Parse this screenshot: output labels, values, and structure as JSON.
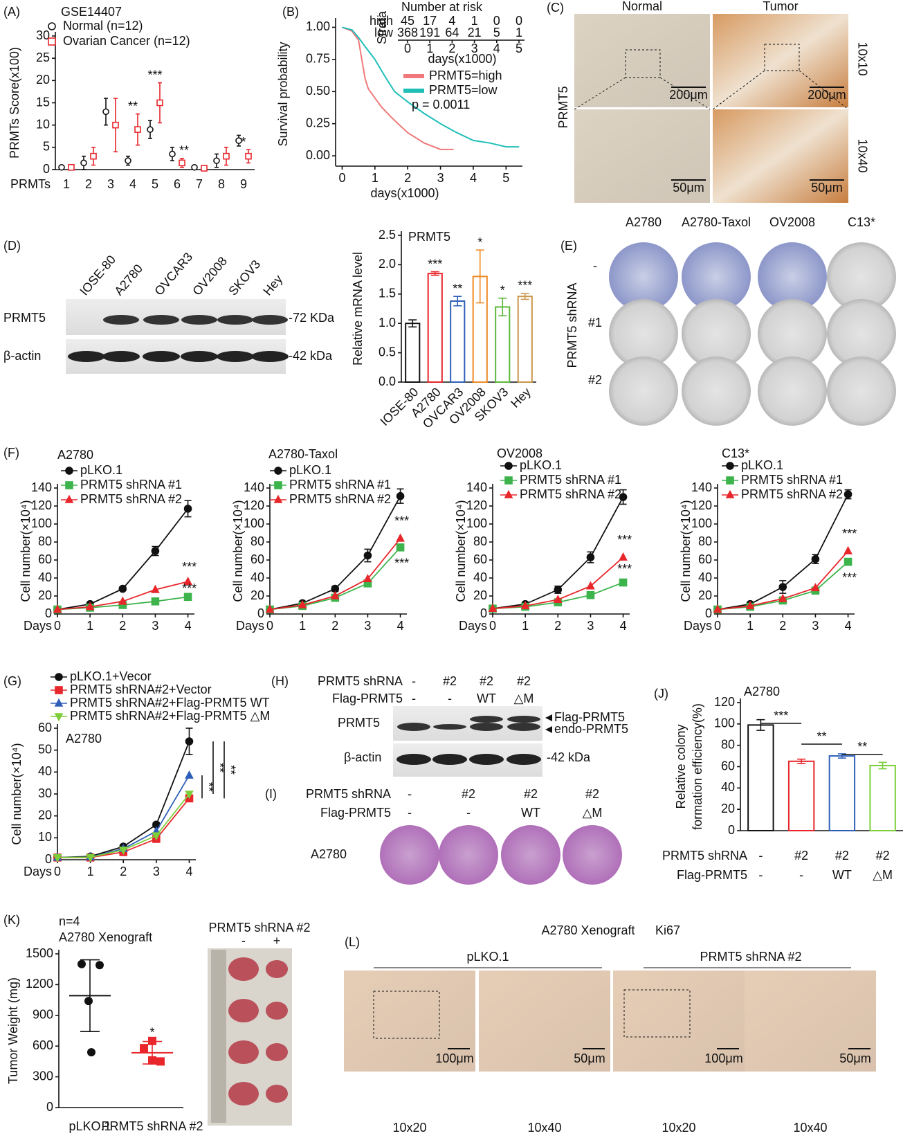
{
  "chart_data": [
    {
      "type": "dot",
      "panel": "(A)",
      "title": "GSE14407",
      "categories": [
        "1",
        "2",
        "3",
        "4",
        "5",
        "6",
        "7",
        "8",
        "9"
      ],
      "category_colors": [
        "#111111",
        "#111111",
        "#111111",
        "#111111",
        "#e8262b",
        "#111111",
        "#111111",
        "#111111",
        "#111111"
      ],
      "xlabel": "PRMTs",
      "ylabel": "PRMTs Score(x100)",
      "ylim": [
        0,
        30
      ],
      "yticks": [
        0,
        5,
        10,
        15,
        20,
        25,
        30
      ],
      "series": [
        {
          "name": "Normal (n=12)",
          "color": "#111111",
          "marker": "circle",
          "values": [
            0.5,
            1.5,
            13,
            2,
            9,
            3.5,
            0.5,
            2,
            6.5
          ],
          "errors": [
            0.3,
            1.5,
            3,
            1,
            2,
            1.5,
            0.3,
            1.5,
            1.2
          ]
        },
        {
          "name": "Ovarian Cancer (n=12)",
          "color": "#e8262b",
          "marker": "square",
          "values": [
            0.5,
            3,
            10,
            9,
            15,
            1.5,
            0.3,
            3,
            3
          ],
          "errors": [
            0.4,
            2,
            6,
            3.5,
            4.5,
            1,
            0.3,
            2,
            1.5
          ]
        }
      ],
      "annotations": [
        null,
        null,
        null,
        "**",
        "***",
        "**",
        null,
        null,
        "*"
      ]
    },
    {
      "type": "line",
      "panel": "(B)",
      "xlabel": "days(x1000)",
      "ylabel": "Survival probability",
      "xlim": [
        -0.2,
        5.5
      ],
      "xticks": [
        0,
        1,
        2,
        3,
        4,
        5
      ],
      "ylim": [
        -0.08,
        1.04
      ],
      "yticks": [
        {
          "value": 0,
          "label": "0.00"
        },
        {
          "value": 0.25,
          "label": "0.25"
        },
        {
          "value": 0.5,
          "label": "0.50"
        },
        {
          "value": 0.75,
          "label": "0.75"
        },
        {
          "value": 1,
          "label": "1.00"
        }
      ],
      "series": [
        {
          "name": "PRMT5=high",
          "color": "#f0787a",
          "x": [
            0,
            0.3,
            0.5,
            0.6,
            0.7,
            0.8,
            1.0,
            1.2,
            1.5,
            2,
            2.5,
            3.0,
            3.4
          ],
          "values": [
            1,
            0.97,
            0.9,
            0.75,
            0.6,
            0.52,
            0.45,
            0.38,
            0.3,
            0.18,
            0.1,
            0.05,
            0.05
          ]
        },
        {
          "name": "PRMT5=low",
          "color": "#1fbfb8",
          "x": [
            0,
            0.3,
            0.5,
            0.7,
            1.0,
            1.3,
            1.6,
            2,
            2.5,
            3,
            3.5,
            4,
            4.5,
            5,
            5.4
          ],
          "values": [
            1,
            0.98,
            0.92,
            0.85,
            0.75,
            0.62,
            0.5,
            0.42,
            0.33,
            0.25,
            0.18,
            0.12,
            0.1,
            0.07,
            0.07
          ]
        }
      ],
      "pvalue": "p = 0.0011",
      "risk_table": {
        "title": "Number at risk",
        "strata_label": "Strata",
        "ticks": [
          0,
          1,
          2,
          3,
          4,
          5
        ],
        "xlabel": "days(x1000)",
        "rows": [
          {
            "name": "high",
            "color": "#f0787a",
            "values": [
              45,
              17,
              4,
              1,
              0,
              0
            ]
          },
          {
            "name": "low",
            "color": "#1fbfb8",
            "values": [
              368,
              191,
              64,
              21,
              5,
              1
            ]
          }
        ]
      }
    },
    {
      "type": "bar",
      "title": "PRMT5",
      "ylabel": "Relative mRNA level",
      "categories": [
        "IOSE-80",
        "A2780",
        "OVCAR3",
        "OV2008",
        "SKOV3",
        "Hey"
      ],
      "values": [
        1.0,
        1.85,
        1.38,
        1.8,
        1.28,
        1.46
      ],
      "errors": [
        0.06,
        0.03,
        0.08,
        0.45,
        0.15,
        0.05
      ],
      "colors": [
        "#111111",
        "#e8262b",
        "#2e5fb8",
        "#f08a24",
        "#5cb83a",
        "#c9964a"
      ],
      "ylim": [
        0,
        2.5
      ],
      "yticks": [
        {
          "value": 0,
          "label": "0.0"
        },
        {
          "value": 0.5,
          "label": "0.5"
        },
        {
          "value": 1,
          "label": "1.0"
        },
        {
          "value": 1.5,
          "label": "1.5"
        },
        {
          "value": 2,
          "label": "2.0"
        },
        {
          "value": 2.5,
          "label": "2.5"
        }
      ],
      "annotations": [
        null,
        "***",
        "**",
        "*",
        "*",
        "***"
      ]
    },
    {
      "type": "line",
      "panel": "(F)",
      "title": "A2780",
      "x": [
        0,
        1,
        2,
        3,
        4
      ],
      "xlim": [
        0,
        4.2
      ],
      "xticks": [
        0,
        1,
        2,
        3,
        4
      ],
      "xlabel": "Days",
      "ylabel": "Cell number(×10⁴)",
      "ylim": [
        0,
        140
      ],
      "yticks": [
        0,
        20,
        40,
        60,
        80,
        100,
        120,
        140
      ],
      "series": [
        {
          "name": "pLKO.1",
          "color": "#111111",
          "marker": "circle",
          "values": [
            5,
            11,
            28,
            70,
            117
          ],
          "errors": [
            1,
            1,
            2,
            5,
            9
          ]
        },
        {
          "name": "PRMT5 shRNA #1",
          "color": "#3cb44b",
          "marker": "square",
          "values": [
            5,
            7,
            10,
            14,
            19
          ]
        },
        {
          "name": "PRMT5 shRNA #2",
          "color": "#e8262b",
          "marker": "triangle",
          "values": [
            5,
            8,
            14,
            27,
            36
          ]
        }
      ],
      "annotations": [
        "***",
        "***"
      ]
    },
    {
      "type": "line",
      "title": "A2780-Taxol",
      "x": [
        0,
        1,
        2,
        3,
        4
      ],
      "xlim": [
        0,
        4.2
      ],
      "xticks": [
        0,
        1,
        2,
        3,
        4
      ],
      "xlabel": "Days",
      "ylabel": "Cell number(×10⁴)",
      "ylim": [
        0,
        140
      ],
      "yticks": [
        0,
        20,
        40,
        60,
        80,
        100,
        120,
        140
      ],
      "series": [
        {
          "name": "pLKO.1",
          "color": "#111111",
          "marker": "circle",
          "values": [
            5,
            12,
            28,
            65,
            131
          ],
          "errors": [
            1,
            1,
            3,
            7,
            8
          ]
        },
        {
          "name": "PRMT5 shRNA #1",
          "color": "#3cb44b",
          "marker": "square",
          "values": [
            5,
            9,
            18,
            34,
            74
          ]
        },
        {
          "name": "PRMT5 shRNA #2",
          "color": "#e8262b",
          "marker": "triangle",
          "values": [
            5,
            10,
            20,
            39,
            84
          ]
        }
      ],
      "annotations": [
        "***",
        "***"
      ]
    },
    {
      "type": "line",
      "title": "OV2008",
      "x": [
        0,
        1,
        2,
        3,
        4
      ],
      "xlim": [
        0,
        4.2
      ],
      "xticks": [
        0,
        1,
        2,
        3,
        4
      ],
      "xlabel": "Days",
      "ylabel": "Cell number(×10⁴)",
      "ylim": [
        0,
        140
      ],
      "yticks": [
        0,
        20,
        40,
        60,
        80,
        100,
        120,
        140
      ],
      "series": [
        {
          "name": "pLKO.1",
          "color": "#111111",
          "marker": "circle",
          "values": [
            6,
            11,
            27,
            63,
            130
          ],
          "errors": [
            1,
            1,
            4,
            6,
            8
          ]
        },
        {
          "name": "PRMT5 shRNA #1",
          "color": "#3cb44b",
          "marker": "square",
          "values": [
            6,
            8,
            13,
            21,
            35
          ]
        },
        {
          "name": "PRMT5 shRNA #2",
          "color": "#e8262b",
          "marker": "triangle",
          "values": [
            6,
            9,
            16,
            31,
            63
          ]
        }
      ],
      "annotations": [
        "***",
        "***"
      ]
    },
    {
      "type": "line",
      "title": "C13*",
      "x": [
        0,
        1,
        2,
        3,
        4
      ],
      "xlim": [
        0,
        4.2
      ],
      "xticks": [
        0,
        1,
        2,
        3,
        4
      ],
      "xlabel": "Days",
      "ylabel": "Cell number(×10⁴)",
      "ylim": [
        0,
        140
      ],
      "yticks": [
        0,
        20,
        40,
        60,
        80,
        100,
        120,
        140
      ],
      "series": [
        {
          "name": "pLKO.1",
          "color": "#111111",
          "marker": "circle",
          "values": [
            5,
            11,
            30,
            61,
            133
          ],
          "errors": [
            1,
            1,
            7,
            5,
            5
          ]
        },
        {
          "name": "PRMT5 shRNA #1",
          "color": "#3cb44b",
          "marker": "square",
          "values": [
            5,
            8,
            15,
            26,
            58
          ]
        },
        {
          "name": "PRMT5 shRNA #2",
          "color": "#e8262b",
          "marker": "triangle",
          "values": [
            5,
            9,
            17,
            29,
            70
          ]
        }
      ],
      "annotations": [
        "***",
        "***"
      ]
    },
    {
      "type": "line",
      "panel": "(G)",
      "title": "A2780",
      "x": [
        0,
        1,
        2,
        3,
        4
      ],
      "xlim": [
        0,
        4.2
      ],
      "xticks": [
        0,
        1,
        2,
        3,
        4
      ],
      "xlabel": "Days",
      "ylabel": "Cell number(×10⁴)",
      "ylim": [
        0,
        60
      ],
      "yticks": [
        0,
        10,
        20,
        30,
        40,
        50,
        60
      ],
      "series": [
        {
          "name": "pLKO.1+Vecor",
          "color": "#111111",
          "marker": "circle",
          "values": [
            1,
            1.5,
            6,
            16,
            54
          ],
          "errors": [
            0.3,
            0.3,
            0.5,
            1,
            6
          ]
        },
        {
          "name": "PRMT5 shRNA#2+Vector",
          "color": "#e8262b",
          "marker": "square",
          "values": [
            1,
            1,
            3.5,
            9.5,
            28
          ]
        },
        {
          "name": "PRMT5 shRNA#2+Flag-PRMT5 WT",
          "color": "#2e5fb8",
          "marker": "triangle",
          "values": [
            1,
            1.2,
            5,
            13,
            38.5
          ]
        },
        {
          "name": "PRMT5 shRNA#2+Flag-PRMT5 △M",
          "color": "#7ccf3a",
          "marker": "triangle-down",
          "values": [
            1,
            1.1,
            4.5,
            11,
            30
          ]
        }
      ],
      "annotations": [
        "**",
        "**",
        "**"
      ]
    },
    {
      "type": "bar",
      "panel": "(J)",
      "title": "A2780",
      "ylabel": [
        "Relative colony",
        "formation efficiency(%)"
      ],
      "values": [
        99,
        65,
        70,
        61
      ],
      "errors": [
        5,
        2,
        2,
        3
      ],
      "colors": [
        "#111111",
        "#e8262b",
        "#2e5fb8",
        "#7ccf3a"
      ],
      "ylim": [
        0,
        120
      ],
      "yticks": [
        0,
        20,
        40,
        60,
        80,
        100,
        120
      ],
      "table_rows": [
        {
          "name": "PRMT5 shRNA",
          "values": [
            "-",
            "#2",
            "#2",
            "#2"
          ]
        },
        {
          "name": "Flag-PRMT5",
          "values": [
            "-",
            "-",
            "WT",
            "△M"
          ]
        }
      ],
      "brackets": [
        "***",
        "**",
        "**"
      ]
    },
    {
      "type": "strip",
      "panel": "(K)",
      "title": [
        "n=4",
        "A2780 Xenograft"
      ],
      "ylabel": "Tumor Weight (mg)",
      "categories": [
        "pLKO.1",
        "PRMT5 shRNA #2"
      ],
      "points": [
        [
          1400,
          1390,
          1040,
          540
        ],
        [
          650,
          580,
          460,
          450
        ]
      ],
      "values": [
        1092,
        535
      ],
      "errors": [
        350,
        110
      ],
      "colors": [
        "#111111",
        "#e8262b"
      ],
      "ylim": [
        0,
        1500
      ],
      "yticks": [
        0,
        300,
        600,
        900,
        1200,
        1500
      ],
      "annotations": [
        null,
        "*"
      ]
    }
  ],
  "figure": {
    "C": {
      "panel": "(C)",
      "columns": [
        "Normal",
        "Tumor"
      ],
      "row_label": "PRMT5",
      "magnifications": [
        "10x10",
        "10x40"
      ],
      "scale_bars": [
        "200μm",
        "200μm",
        "50μm",
        "50μm"
      ]
    },
    "D": {
      "panel": "(D)",
      "lanes": [
        "IOSE-80",
        "A2780",
        "OVCAR3",
        "OV2008",
        "SKOV3",
        "Hey"
      ],
      "bands": [
        "PRMT5",
        "β-actin"
      ],
      "sizes": [
        "-72 KDa",
        "-42 kDa"
      ]
    },
    "E": {
      "panel": "(E)",
      "columns": [
        "A2780",
        "A2780-Taxol",
        "OV2008",
        "C13*"
      ],
      "rows": [
        "-",
        "#1",
        "#2"
      ],
      "row_label": "PRMT5 shRNA"
    },
    "H": {
      "panel": "(H)",
      "conditions": [
        {
          "name": "PRMT5 shRNA",
          "values": [
            "-",
            "#2",
            "#2",
            "#2"
          ]
        },
        {
          "name": "Flag-PRMT5",
          "values": [
            "-",
            "-",
            "WT",
            "△M"
          ]
        }
      ],
      "bands": [
        "PRMT5",
        "β-actin"
      ],
      "band_labels": [
        "Flag-PRMT5",
        "endo-PRMT5"
      ],
      "size": "-42 kDa"
    },
    "I": {
      "panel": "(I)",
      "conditions": [
        {
          "name": "PRMT5 shRNA",
          "values": [
            "-",
            "#2",
            "#2",
            "#2"
          ]
        },
        {
          "name": "Flag-PRMT5",
          "values": [
            "-",
            "-",
            "WT",
            "△M"
          ]
        }
      ],
      "row_label": "A2780"
    },
    "K_photo": {
      "title": "PRMT5 shRNA #2",
      "columns": [
        "-",
        "+"
      ]
    },
    "L": {
      "panel": "(L)",
      "title": "A2780 Xenograft",
      "stain": "Ki67",
      "groups": [
        "pLKO.1",
        "PRMT5 shRNA #2"
      ],
      "scale_bars": [
        "100μm",
        "50μm",
        "100μm",
        "50μm"
      ],
      "magnifications": [
        "10x20",
        "10x40",
        "10x20",
        "10x40"
      ]
    }
  }
}
